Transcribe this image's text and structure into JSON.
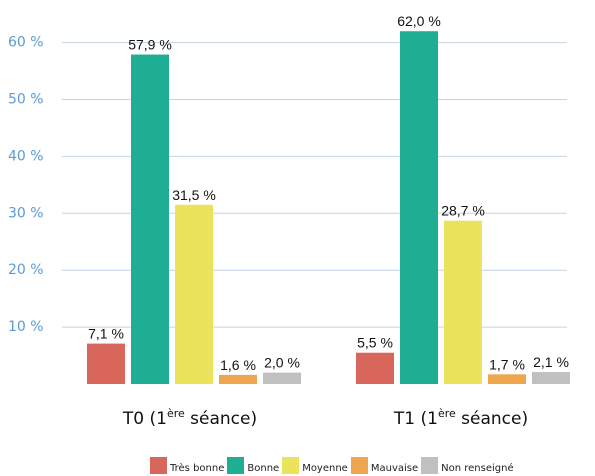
{
  "chart_data": {
    "type": "bar",
    "categories": [
      {
        "main": "T0 (1",
        "sup": "ère",
        "rest": " séance)"
      },
      {
        "main": "T1 (1",
        "sup": "ère",
        "rest": " séance)"
      }
    ],
    "series": [
      {
        "name": "Très bonne",
        "color": "#d9665b",
        "values": [
          7.1,
          5.5
        ],
        "labels": [
          "7,1 %",
          "5,5 %"
        ]
      },
      {
        "name": "Bonne",
        "color": "#1fae94",
        "values": [
          57.9,
          62.0
        ],
        "labels": [
          "57,9 %",
          "62,0 %"
        ]
      },
      {
        "name": "Moyenne",
        "color": "#ebe35c",
        "values": [
          31.5,
          28.7
        ],
        "labels": [
          "31,5 %",
          "28,7 %"
        ]
      },
      {
        "name": "Mauvaise",
        "color": "#eda64d",
        "values": [
          1.6,
          1.7
        ],
        "labels": [
          "1,6 %",
          "1,7 %"
        ]
      },
      {
        "name": "Non renseigné",
        "color": "#c0c0c0",
        "values": [
          2.0,
          2.1
        ],
        "labels": [
          "2,0 %",
          "2,1 %"
        ]
      }
    ],
    "yticks": [
      {
        "value": 10,
        "label": "10 %"
      },
      {
        "value": 20,
        "label": "20 %"
      },
      {
        "value": 30,
        "label": "30 %"
      },
      {
        "value": 40,
        "label": "40 %"
      },
      {
        "value": 50,
        "label": "50 %"
      },
      {
        "value": 60,
        "label": "60 %"
      }
    ],
    "ylim": [
      0,
      65
    ],
    "grid": true,
    "legend_position": "bottom"
  }
}
